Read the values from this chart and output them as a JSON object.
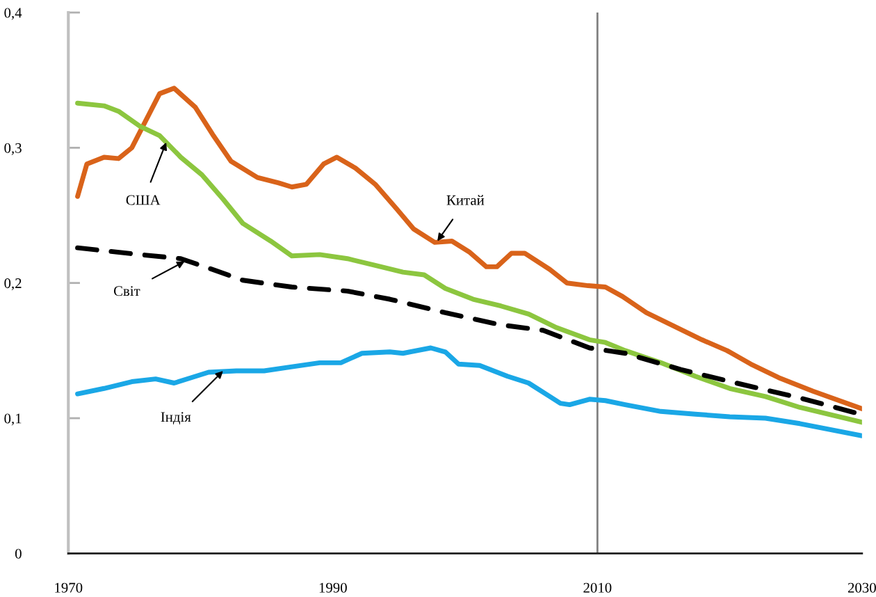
{
  "chart_data": {
    "type": "line",
    "xlim": [
      1970,
      2030
    ],
    "xticks": [
      1970,
      1990,
      2010,
      2030
    ],
    "ylim": [
      0,
      0.4
    ],
    "yticks": [
      0,
      {
        "value": 0.1,
        "label": "0,1"
      },
      {
        "value": 0.2,
        "label": "0,2"
      },
      {
        "value": 0.3,
        "label": "0,3"
      },
      {
        "value": 0.4,
        "label": "0,4"
      }
    ],
    "grid": false,
    "legend": false,
    "series": [
      {
        "color": "#d9631a",
        "x": [
          1970.7,
          1971.4,
          1972.7,
          1973.8,
          1974.8,
          1976.9,
          1978.0,
          1979.6,
          1980.9,
          1982.3,
          1984.3,
          1985.9,
          1986.9,
          1988.0,
          1989.3,
          1990.3,
          1991.7,
          1993.2,
          1994.8,
          1996.1,
          1997.7,
          1999.0,
          2000.3,
          2001.6,
          2002.4,
          2003.5,
          2004.5,
          2006.4,
          2007.7,
          2009.3,
          2010.6,
          2011.9,
          2013.7,
          2015.8,
          2017.9,
          2019.8,
          2021.6,
          2023.7,
          2026.3,
          2030.0
        ],
        "values": [
          0.264,
          0.288,
          0.293,
          0.292,
          0.3,
          0.34,
          0.344,
          0.33,
          0.31,
          0.29,
          0.278,
          0.274,
          0.271,
          0.273,
          0.288,
          0.293,
          0.285,
          0.273,
          0.255,
          0.24,
          0.23,
          0.231,
          0.223,
          0.212,
          0.212,
          0.222,
          0.222,
          0.21,
          0.2,
          0.198,
          0.197,
          0.19,
          0.178,
          0.168,
          0.158,
          0.15,
          0.14,
          0.13,
          0.12,
          0.107
        ]
      },
      {
        "color": "#8cc63f",
        "x": [
          1970.7,
          1972.7,
          1973.8,
          1975.4,
          1976.9,
          1978.5,
          1980.1,
          1981.7,
          1983.2,
          1985.3,
          1986.9,
          1989.0,
          1991.1,
          1993.2,
          1995.3,
          1996.9,
          1998.5,
          2000.6,
          2002.7,
          2004.8,
          2006.9,
          2009.4,
          2010.6,
          2012.1,
          2014.8,
          2017.4,
          2020.0,
          2022.7,
          2025.3,
          2030.0
        ],
        "values": [
          0.333,
          0.331,
          0.327,
          0.316,
          0.309,
          0.293,
          0.28,
          0.262,
          0.244,
          0.231,
          0.22,
          0.221,
          0.218,
          0.213,
          0.208,
          0.206,
          0.196,
          0.188,
          0.183,
          0.177,
          0.167,
          0.158,
          0.156,
          0.15,
          0.141,
          0.131,
          0.122,
          0.116,
          0.108,
          0.097
        ]
      },
      {
        "color": "#000000",
        "line_style": "dashed",
        "x": [
          1970.7,
          1975.4,
          1978.5,
          1980.6,
          1983.2,
          1986.9,
          1991.1,
          1994.3,
          1998.5,
          2002.7,
          2005.9,
          2009.4,
          2012.1,
          2016.3,
          2020.5,
          2025.3,
          2029.5
        ],
        "values": [
          0.226,
          0.221,
          0.218,
          0.211,
          0.202,
          0.197,
          0.194,
          0.188,
          0.178,
          0.169,
          0.165,
          0.152,
          0.148,
          0.136,
          0.126,
          0.115,
          0.104
        ]
      },
      {
        "color": "#1aa7e6",
        "x": [
          1970.7,
          1972.7,
          1974.8,
          1976.6,
          1978.0,
          1979.3,
          1980.6,
          1982.7,
          1984.8,
          1986.9,
          1989.0,
          1990.6,
          1992.2,
          1994.3,
          1995.3,
          1997.4,
          1998.5,
          1999.5,
          2001.1,
          2003.2,
          2004.8,
          2006.4,
          2007.2,
          2007.9,
          2009.4,
          2010.6,
          2012.1,
          2014.8,
          2017.4,
          2020.0,
          2022.7,
          2025.3,
          2030.0
        ],
        "values": [
          0.118,
          0.122,
          0.127,
          0.129,
          0.126,
          0.13,
          0.134,
          0.135,
          0.135,
          0.138,
          0.141,
          0.141,
          0.148,
          0.149,
          0.148,
          0.152,
          0.149,
          0.14,
          0.139,
          0.131,
          0.126,
          0.116,
          0.111,
          0.11,
          0.114,
          0.113,
          0.11,
          0.105,
          0.103,
          0.101,
          0.1,
          0.096,
          0.087
        ]
      }
    ],
    "ref_lines": [
      {
        "axis": "x",
        "value": 2010,
        "color": "#808080"
      }
    ],
    "annotations": [
      {
        "text": "Китай",
        "x": 1997.9,
        "y": 0.231
      },
      {
        "text": "США",
        "x": 1977.4,
        "y": 0.304
      },
      {
        "text": "Світ",
        "x": 1978.8,
        "y": 0.216
      },
      {
        "text": "Індія",
        "x": 1981.7,
        "y": 0.135
      }
    ]
  }
}
